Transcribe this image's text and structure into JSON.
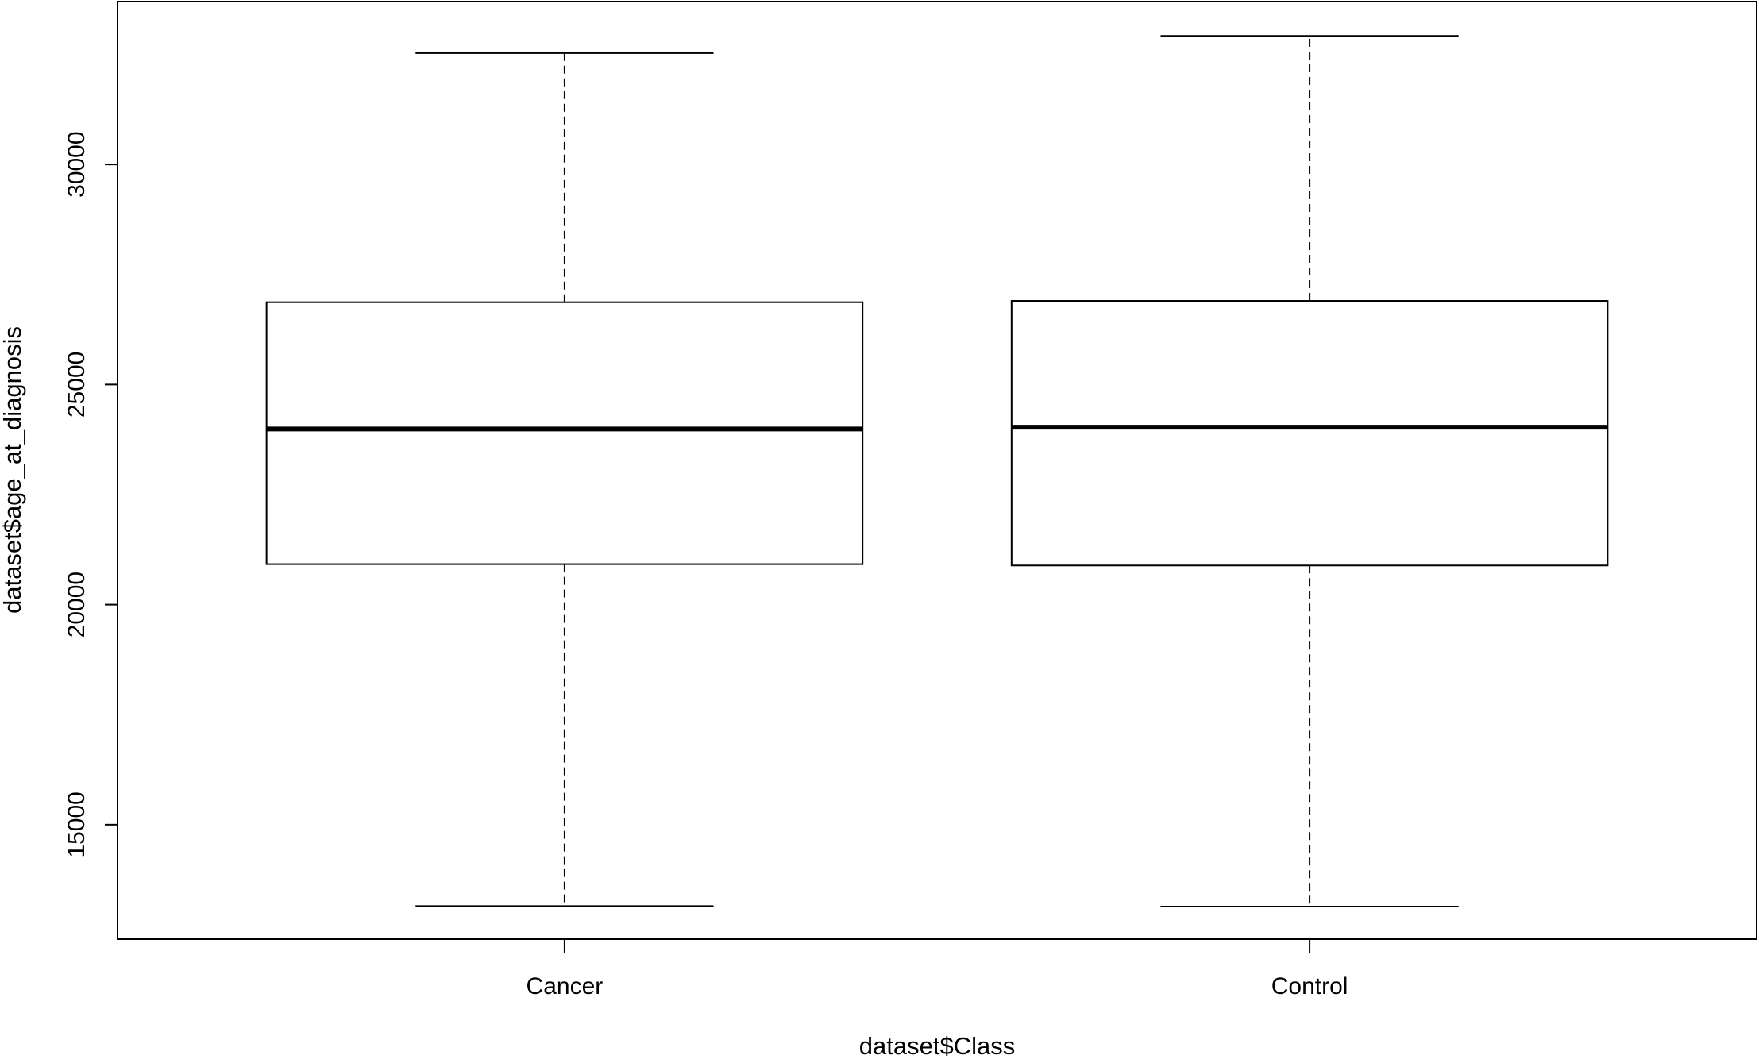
{
  "chart_data": {
    "type": "boxplot",
    "xlabel": "dataset$Class",
    "ylabel": "dataset$age_at_diagnosis",
    "categories": [
      "Cancer",
      "Control"
    ],
    "ylim": [
      12400,
      33700
    ],
    "y_ticks": [
      15000,
      20000,
      25000,
      30000
    ],
    "y_tick_labels": [
      "15000",
      "20000",
      "25000",
      "30000"
    ],
    "boxes": [
      {
        "category": "Cancer",
        "whisker_low": 13150,
        "q1": 20920,
        "median": 23990,
        "q3": 26870,
        "whisker_high": 32530
      },
      {
        "category": "Control",
        "whisker_low": 13140,
        "q1": 20890,
        "median": 24030,
        "q3": 26900,
        "whisker_high": 32920
      }
    ],
    "grid": false,
    "legend": "none"
  }
}
